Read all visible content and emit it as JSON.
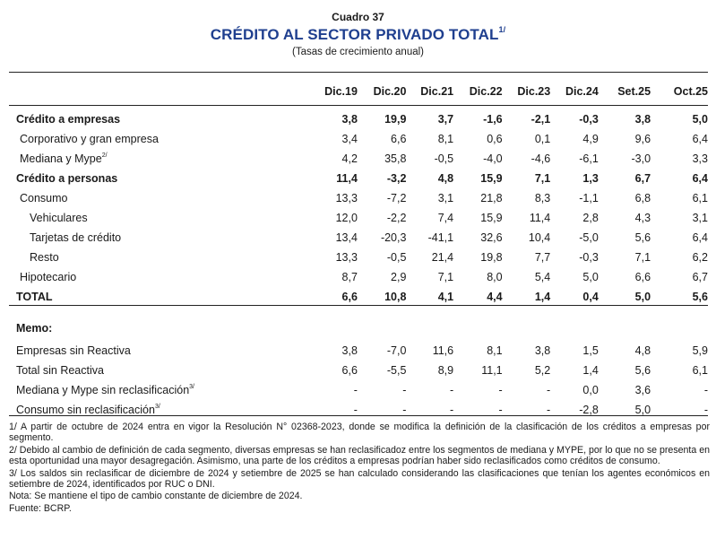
{
  "header": {
    "cuadro": "Cuadro 37",
    "title": "CRÉDITO AL SECTOR PRIVADO TOTAL",
    "title_note": "1/",
    "subtitle": "(Tasas de crecimiento anual)"
  },
  "columns": [
    "Dic.19",
    "Dic.20",
    "Dic.21",
    "Dic.22",
    "Dic.23",
    "Dic.24",
    "Set.25",
    "Oct.25"
  ],
  "rows": [
    {
      "label": "Crédito a empresas",
      "note": "",
      "bold": true,
      "indent": 0,
      "values": [
        "3,8",
        "19,9",
        "3,7",
        "-1,6",
        "-2,1",
        "-0,3",
        "3,8",
        "5,0"
      ]
    },
    {
      "label": "Corporativo y gran empresa",
      "note": "",
      "bold": false,
      "indent": 1,
      "values": [
        "3,4",
        "6,6",
        "8,1",
        "0,6",
        "0,1",
        "4,9",
        "9,6",
        "6,4"
      ]
    },
    {
      "label": "Mediana y Mype",
      "note": "2/",
      "bold": false,
      "indent": 1,
      "values": [
        "4,2",
        "35,8",
        "-0,5",
        "-4,0",
        "-4,6",
        "-6,1",
        "-3,0",
        "3,3"
      ]
    },
    {
      "label": "Crédito a personas",
      "note": "",
      "bold": true,
      "indent": 0,
      "values": [
        "11,4",
        "-3,2",
        "4,8",
        "15,9",
        "7,1",
        "1,3",
        "6,7",
        "6,4"
      ]
    },
    {
      "label": "Consumo",
      "note": "",
      "bold": false,
      "indent": 1,
      "values": [
        "13,3",
        "-7,2",
        "3,1",
        "21,8",
        "8,3",
        "-1,1",
        "6,8",
        "6,1"
      ]
    },
    {
      "label": "Vehiculares",
      "note": "",
      "bold": false,
      "indent": 2,
      "values": [
        "12,0",
        "-2,2",
        "7,4",
        "15,9",
        "11,4",
        "2,8",
        "4,3",
        "3,1"
      ]
    },
    {
      "label": "Tarjetas de crédito",
      "note": "",
      "bold": false,
      "indent": 2,
      "values": [
        "13,4",
        "-20,3",
        "-41,1",
        "32,6",
        "10,4",
        "-5,0",
        "5,6",
        "6,4"
      ]
    },
    {
      "label": "Resto",
      "note": "",
      "bold": false,
      "indent": 2,
      "values": [
        "13,3",
        "-0,5",
        "21,4",
        "19,8",
        "7,7",
        "-0,3",
        "7,1",
        "6,2"
      ]
    },
    {
      "label": "Hipotecario",
      "note": "",
      "bold": false,
      "indent": 1,
      "values": [
        "8,7",
        "2,9",
        "7,1",
        "8,0",
        "5,4",
        "5,0",
        "6,6",
        "6,7"
      ]
    }
  ],
  "total": {
    "label": "TOTAL",
    "values": [
      "6,6",
      "10,8",
      "4,1",
      "4,4",
      "1,4",
      "0,4",
      "5,0",
      "5,6"
    ]
  },
  "memo": {
    "label": "Memo:",
    "rows": [
      {
        "label": "Empresas sin Reactiva",
        "note": "",
        "values": [
          "3,8",
          "-7,0",
          "11,6",
          "8,1",
          "3,8",
          "1,5",
          "4,8",
          "5,9"
        ]
      },
      {
        "label": "Total sin Reactiva",
        "note": "",
        "values": [
          "6,6",
          "-5,5",
          "8,9",
          "11,1",
          "5,2",
          "1,4",
          "5,6",
          "6,1"
        ]
      },
      {
        "label": "Mediana y Mype sin reclasificación",
        "note": "3/",
        "values": [
          "-",
          "-",
          "-",
          "-",
          "-",
          "0,0",
          "3,6",
          "-"
        ]
      },
      {
        "label": "Consumo sin reclasificación",
        "note": "3/",
        "values": [
          "-",
          "-",
          "-",
          "-",
          "-",
          "-2,8",
          "5,0",
          "-"
        ]
      }
    ]
  },
  "notes": [
    "1/ A partir de octubre de 2024 entra en vigor la Resolución N° 02368-2023, donde se modifica la definición de la clasificación de los créditos a empresas por segmento.",
    "2/ Debido al cambio de definición de cada segmento, diversas empresas se han reclasificadoz entre los segmentos de mediana y MYPE, por lo que no se presenta en esta oportunidad una mayor desagregación. Asimismo, una parte de los créditos a empresas podrían haber sido reclasificados como créditos de consumo.",
    "3/ Los saldos sin reclasificar de diciembre de 2024 y setiembre de 2025 se han calculado considerando las clasificaciones que tenían los agentes económicos en setiembre de 2024, identificados por RUC o DNI.",
    "Nota: Se mantiene el tipo de cambio constante de diciembre de 2024.",
    "Fuente: BCRP."
  ]
}
